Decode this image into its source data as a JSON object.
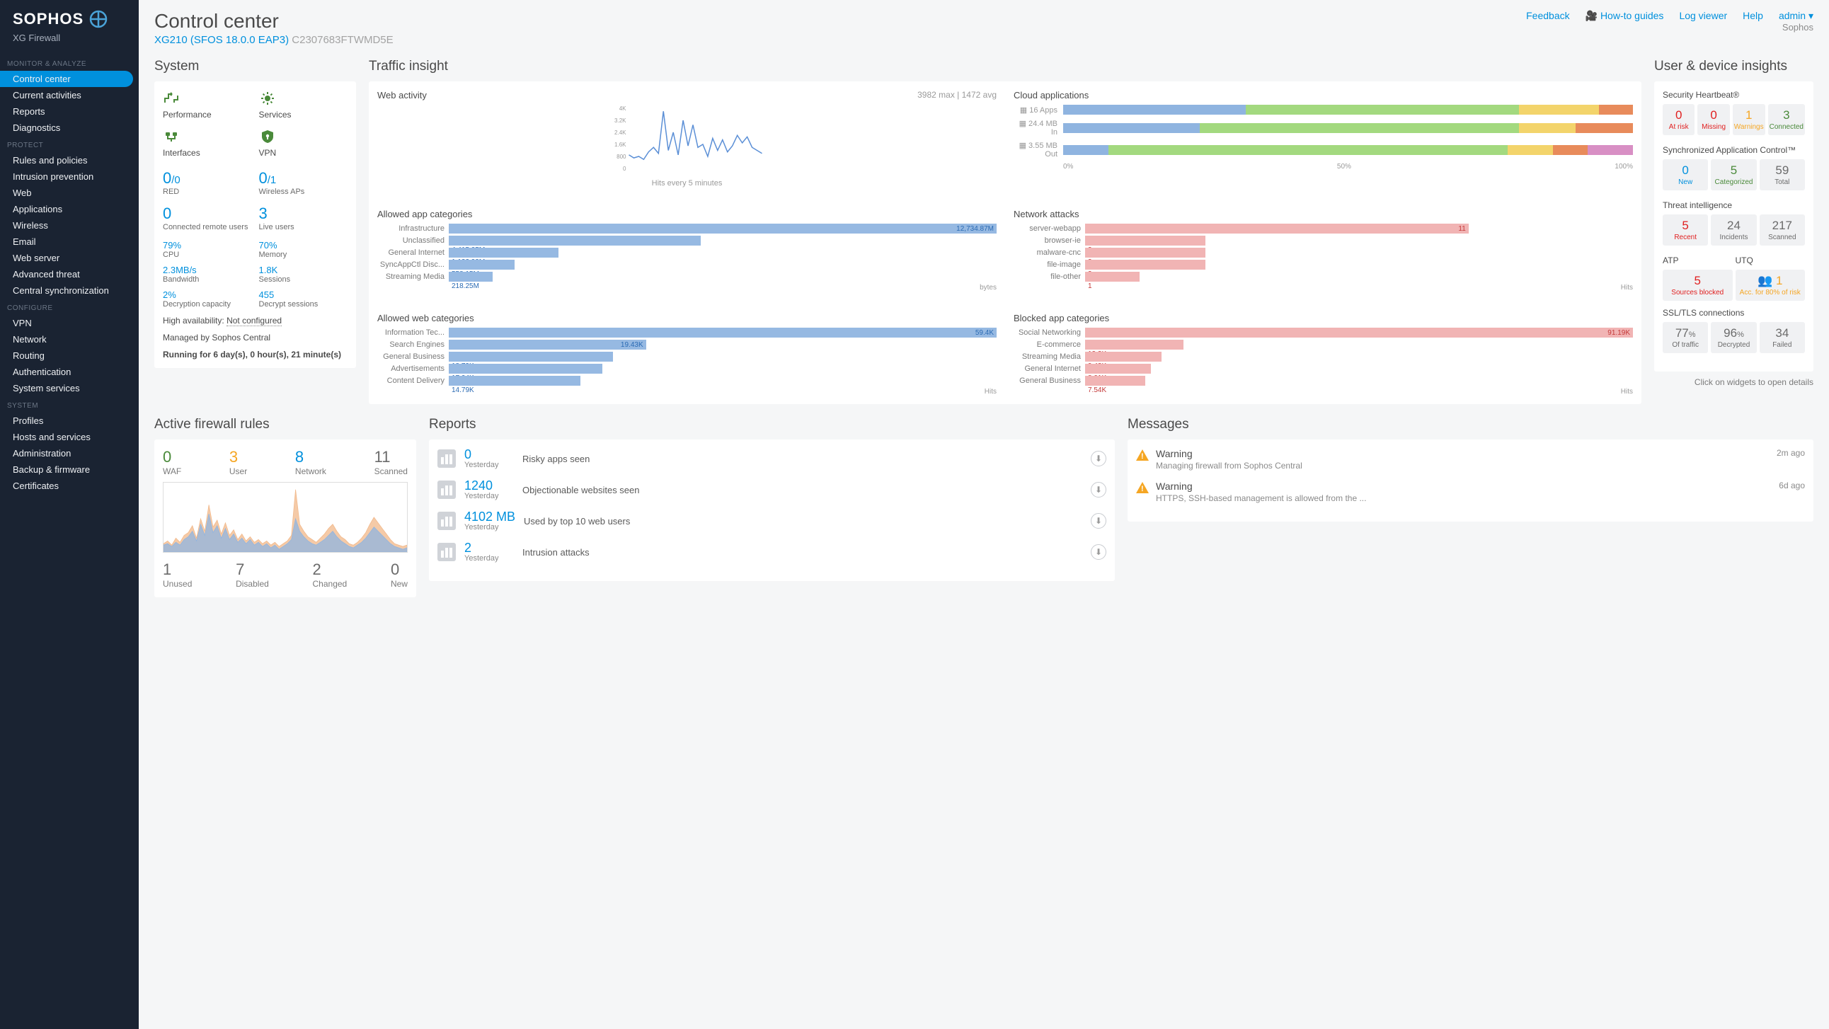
{
  "brand": {
    "name": "SOPHOS",
    "product": "XG Firewall"
  },
  "page": {
    "title": "Control center",
    "model": "XG210 (SFOS 18.0.0 EAP3)",
    "serial": "C2307683FTWMD5E"
  },
  "topnav": {
    "feedback": "Feedback",
    "howto": "How-to guides",
    "logviewer": "Log viewer",
    "help": "Help",
    "admin": "admin",
    "company": "Sophos"
  },
  "nav": {
    "sections": [
      {
        "label": "MONITOR & ANALYZE",
        "items": [
          "Control center",
          "Current activities",
          "Reports",
          "Diagnostics"
        ],
        "active": "Control center"
      },
      {
        "label": "PROTECT",
        "items": [
          "Rules and policies",
          "Intrusion prevention",
          "Web",
          "Applications",
          "Wireless",
          "Email",
          "Web server",
          "Advanced threat",
          "Central synchronization"
        ]
      },
      {
        "label": "CONFIGURE",
        "items": [
          "VPN",
          "Network",
          "Routing",
          "Authentication",
          "System services"
        ]
      },
      {
        "label": "SYSTEM",
        "items": [
          "Profiles",
          "Hosts and services",
          "Administration",
          "Backup & firmware",
          "Certificates"
        ]
      }
    ]
  },
  "system": {
    "title": "System",
    "icons": [
      {
        "key": "performance",
        "label": "Performance",
        "color": "#4a8a3a"
      },
      {
        "key": "services",
        "label": "Services",
        "color": "#4a8a3a"
      },
      {
        "key": "interfaces",
        "label": "Interfaces",
        "color": "#4a8a3a"
      },
      {
        "key": "vpn",
        "label": "VPN",
        "color": "#4a8a3a"
      }
    ],
    "stats": [
      {
        "big": "0",
        "denom": "/0",
        "label": "RED"
      },
      {
        "big": "0",
        "denom": "/1",
        "label": "Wireless APs"
      },
      {
        "big": "0",
        "denom": "",
        "label": "Connected remote users"
      },
      {
        "big": "3",
        "denom": "",
        "label": "Live users"
      }
    ],
    "metrics": [
      {
        "val": "79%",
        "label": "CPU"
      },
      {
        "val": "70%",
        "label": "Memory"
      },
      {
        "val": "2.3MB/s",
        "label": "Bandwidth"
      },
      {
        "val": "1.8K",
        "label": "Sessions"
      },
      {
        "val": "2%",
        "label": "Decryption capacity"
      },
      {
        "val": "455",
        "label": "Decrypt sessions"
      }
    ],
    "ha_label": "High availability:",
    "ha_value": "Not configured",
    "managed": "Managed by Sophos Central",
    "uptime": "Running for 6 day(s), 0 hour(s), 21 minute(s)"
  },
  "traffic": {
    "title": "Traffic insight",
    "web": {
      "title": "Web activity",
      "meta": "3982 max | 1472 avg",
      "ylabels": [
        "4K",
        "3.2K",
        "2.4K",
        "1.6K",
        "800",
        "0"
      ],
      "foot": "Hits every 5 minutes",
      "points": [
        900,
        700,
        800,
        600,
        1100,
        1400,
        1000,
        3800,
        1200,
        2400,
        900,
        3200,
        1500,
        2900,
        1400,
        1600,
        800,
        2000,
        1200,
        1900,
        1100,
        1500,
        2200,
        1700,
        2100,
        1400,
        1200,
        1000
      ],
      "ymax": 4000,
      "line_color": "#5b8fd6"
    },
    "cloud": {
      "title": "Cloud applications",
      "rows": [
        {
          "label": "16 Apps",
          "segs": [
            [
              "#8fb4e0",
              32
            ],
            [
              "#a3d97f",
              48
            ],
            [
              "#f3d46b",
              14
            ],
            [
              "#e88b5b",
              6
            ]
          ]
        },
        {
          "label": "24.4 MB In",
          "segs": [
            [
              "#8fb4e0",
              24
            ],
            [
              "#a3d97f",
              56
            ],
            [
              "#f3d46b",
              10
            ],
            [
              "#e88b5b",
              10
            ]
          ]
        },
        {
          "label": "3.55 MB Out",
          "segs": [
            [
              "#8fb4e0",
              8
            ],
            [
              "#a3d97f",
              70
            ],
            [
              "#f3d46b",
              8
            ],
            [
              "#e88b5b",
              6
            ],
            [
              "#d88fc4",
              8
            ]
          ]
        }
      ],
      "legend": [
        "0%",
        "50%",
        "100%"
      ]
    },
    "allowed_apps": {
      "title": "Allowed app categories",
      "unit": "bytes",
      "color": "#96b9e2",
      "text": "#2b6bb4",
      "rows": [
        {
          "label": "Infrastructure",
          "val": "12,734.87M",
          "w": 100
        },
        {
          "label": "Unclassified",
          "val": "4,415.05M",
          "w": 46
        },
        {
          "label": "General Internet",
          "val": "1,132.99M",
          "w": 20
        },
        {
          "label": "SyncAppCtl Disc...",
          "val": "558.15M",
          "w": 12
        },
        {
          "label": "Streaming Media",
          "val": "218.25M",
          "w": 8
        }
      ]
    },
    "network_attacks": {
      "title": "Network attacks",
      "unit": "Hits",
      "color": "#f1b4b4",
      "text": "#c43a3a",
      "rows": [
        {
          "label": "server-webapp",
          "val": "11",
          "w": 70
        },
        {
          "label": "browser-ie",
          "val": "3",
          "w": 22
        },
        {
          "label": "malware-cnc",
          "val": "3",
          "w": 22
        },
        {
          "label": "file-image",
          "val": "3",
          "w": 22
        },
        {
          "label": "file-other",
          "val": "1",
          "w": 10
        }
      ]
    },
    "allowed_web": {
      "title": "Allowed web categories",
      "unit": "Hits",
      "color": "#96b9e2",
      "text": "#2b6bb4",
      "rows": [
        {
          "label": "Information Tec...",
          "val": "59.4K",
          "w": 100
        },
        {
          "label": "Search Engines",
          "val": "19.43K",
          "w": 36,
          "inside": true
        },
        {
          "label": "General Business",
          "val": "18.79K",
          "w": 30
        },
        {
          "label": "Advertisements",
          "val": "17.04K",
          "w": 28
        },
        {
          "label": "Content Delivery",
          "val": "14.79K",
          "w": 24
        }
      ]
    },
    "blocked_apps": {
      "title": "Blocked app categories",
      "unit": "Hits",
      "color": "#f1b4b4",
      "text": "#c43a3a",
      "rows": [
        {
          "label": "Social Networking",
          "val": "91.19K",
          "w": 100
        },
        {
          "label": "E-commerce",
          "val": "13.3K",
          "w": 18
        },
        {
          "label": "Streaming Media",
          "val": "9.43K",
          "w": 14
        },
        {
          "label": "General Internet",
          "val": "8.01K",
          "w": 12
        },
        {
          "label": "General Business",
          "val": "7.54K",
          "w": 11
        }
      ]
    }
  },
  "insights": {
    "title": "User & device insights",
    "heartbeat": {
      "title": "Security Heartbeat®",
      "tiles": [
        {
          "num": "0",
          "lbl": "At risk",
          "cls": "c-red"
        },
        {
          "num": "0",
          "lbl": "Missing",
          "cls": "c-red"
        },
        {
          "num": "1",
          "lbl": "Warnings",
          "cls": "c-orange"
        },
        {
          "num": "3",
          "lbl": "Connected",
          "cls": "c-green"
        }
      ]
    },
    "sac": {
      "title": "Synchronized Application Control™",
      "tiles": [
        {
          "num": "0",
          "lbl": "New",
          "cls": "c-blue"
        },
        {
          "num": "5",
          "lbl": "Categorized",
          "cls": "c-green"
        },
        {
          "num": "59",
          "lbl": "Total",
          "cls": "c-gray"
        }
      ]
    },
    "threat": {
      "title": "Threat intelligence",
      "tiles": [
        {
          "num": "5",
          "lbl": "Recent",
          "cls": "c-red"
        },
        {
          "num": "24",
          "lbl": "Incidents",
          "cls": "c-gray"
        },
        {
          "num": "217",
          "lbl": "Scanned",
          "cls": "c-gray"
        }
      ]
    },
    "atp": {
      "title": "ATP",
      "num": "5",
      "lbl": "Sources blocked",
      "cls": "c-red"
    },
    "utq": {
      "title": "UTQ",
      "num": "1",
      "lbl": "Acc. for 80% of risk",
      "cls": "c-orange",
      "icon": "👥"
    },
    "ssl": {
      "title": "SSL/TLS connections",
      "tiles": [
        {
          "num": "77",
          "suffix": "%",
          "lbl": "Of traffic",
          "cls": "c-gray"
        },
        {
          "num": "96",
          "suffix": "%",
          "lbl": "Decrypted",
          "cls": "c-gray"
        },
        {
          "num": "34",
          "suffix": "",
          "lbl": "Failed",
          "cls": "c-gray"
        }
      ]
    },
    "hint": "Click on widgets to open details"
  },
  "firewall": {
    "title": "Active firewall rules",
    "top": [
      {
        "num": "0",
        "lbl": "WAF",
        "color": "#4a8a3a"
      },
      {
        "num": "3",
        "lbl": "User",
        "color": "#f5a623"
      },
      {
        "num": "8",
        "lbl": "Network",
        "color": "#0090dd"
      },
      {
        "num": "11",
        "lbl": "Scanned",
        "color": "#6b6b6b"
      }
    ],
    "bottom": [
      {
        "num": "1",
        "lbl": "Unused"
      },
      {
        "num": "7",
        "lbl": "Disabled"
      },
      {
        "num": "2",
        "lbl": "Changed"
      },
      {
        "num": "0",
        "lbl": "New"
      }
    ],
    "series": {
      "blue": [
        10,
        12,
        8,
        14,
        10,
        18,
        22,
        30,
        16,
        40,
        24,
        55,
        28,
        38,
        20,
        34,
        18,
        26,
        14,
        20,
        12,
        18,
        10,
        14,
        8,
        12,
        6,
        10,
        4,
        8,
        12,
        18,
        48,
        30,
        22,
        16,
        12,
        10,
        14,
        18,
        24,
        30,
        22,
        16,
        12,
        8,
        6,
        10,
        14,
        20,
        28,
        36,
        30,
        24,
        18,
        12,
        8,
        6,
        4,
        6
      ],
      "orange": [
        12,
        16,
        10,
        20,
        14,
        24,
        28,
        38,
        20,
        48,
        30,
        68,
        36,
        46,
        26,
        42,
        24,
        32,
        18,
        26,
        16,
        22,
        14,
        18,
        12,
        16,
        10,
        14,
        8,
        12,
        16,
        24,
        90,
        40,
        30,
        22,
        18,
        14,
        20,
        26,
        34,
        40,
        30,
        22,
        18,
        12,
        10,
        14,
        20,
        28,
        40,
        50,
        42,
        34,
        26,
        18,
        12,
        10,
        8,
        10
      ],
      "ymax": 100,
      "blue_color": "#8fb4e0",
      "orange_color": "#f1b88a"
    }
  },
  "reports": {
    "title": "Reports",
    "rows": [
      {
        "val": "0",
        "sub": "Yesterday",
        "desc": "Risky apps seen"
      },
      {
        "val": "1240",
        "sub": "Yesterday",
        "desc": "Objectionable websites seen"
      },
      {
        "val": "4102 MB",
        "sub": "Yesterday",
        "desc": "Used by top 10 web users"
      },
      {
        "val": "2",
        "sub": "Yesterday",
        "desc": "Intrusion attacks"
      }
    ]
  },
  "messages": {
    "title": "Messages",
    "rows": [
      {
        "title": "Warning",
        "time": "2m ago",
        "text": "Managing firewall from Sophos Central"
      },
      {
        "title": "Warning",
        "time": "6d ago",
        "text": "HTTPS, SSH-based management is allowed from the ..."
      }
    ]
  }
}
